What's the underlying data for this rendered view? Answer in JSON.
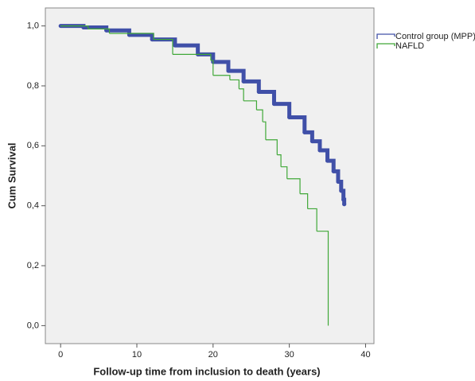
{
  "chart_data": {
    "type": "step",
    "x_label": "Follow-up time from inclusion to death (years)",
    "y_label": "Cum Survival",
    "xlim": [
      -2,
      41.1
    ],
    "ylim": [
      -0.06,
      1.06
    ],
    "xticks": [
      0,
      10,
      20,
      30,
      40
    ],
    "yticks": [
      {
        "value": 0,
        "label": "0,0"
      },
      {
        "value": 0.2,
        "label": "0,2"
      },
      {
        "value": 0.4,
        "label": "0,4"
      },
      {
        "value": 0.6,
        "label": "0,6"
      },
      {
        "value": 0.8,
        "label": "0,8"
      },
      {
        "value": 1,
        "label": "1,0"
      }
    ],
    "series": [
      {
        "name": "Control group (MPP)",
        "color": "#4050a8",
        "x": [
          0,
          3,
          6,
          9,
          12,
          15,
          18,
          20,
          22,
          24,
          26,
          28,
          30,
          32,
          33,
          34,
          35,
          35.8,
          36.4,
          36.8,
          37.1,
          37.2
        ],
        "values": [
          1.0,
          0.995,
          0.985,
          0.97,
          0.955,
          0.935,
          0.905,
          0.88,
          0.85,
          0.815,
          0.78,
          0.74,
          0.695,
          0.645,
          0.615,
          0.585,
          0.55,
          0.515,
          0.48,
          0.45,
          0.42,
          0.405
        ]
      },
      {
        "name": "NAFLD",
        "color": "#40a838",
        "x": [
          0,
          3.6,
          6.4,
          12.2,
          14.7,
          19.7,
          20.0,
          22.2,
          23.4,
          24.0,
          25.7,
          26.5,
          26.9,
          28.4,
          28.9,
          29.7,
          31.4,
          32.4,
          33.6,
          35.1
        ],
        "values": [
          1.0,
          0.99,
          0.975,
          0.955,
          0.905,
          0.885,
          0.835,
          0.82,
          0.79,
          0.75,
          0.72,
          0.68,
          0.62,
          0.57,
          0.53,
          0.49,
          0.44,
          0.39,
          0.315,
          0.0
        ]
      }
    ]
  }
}
